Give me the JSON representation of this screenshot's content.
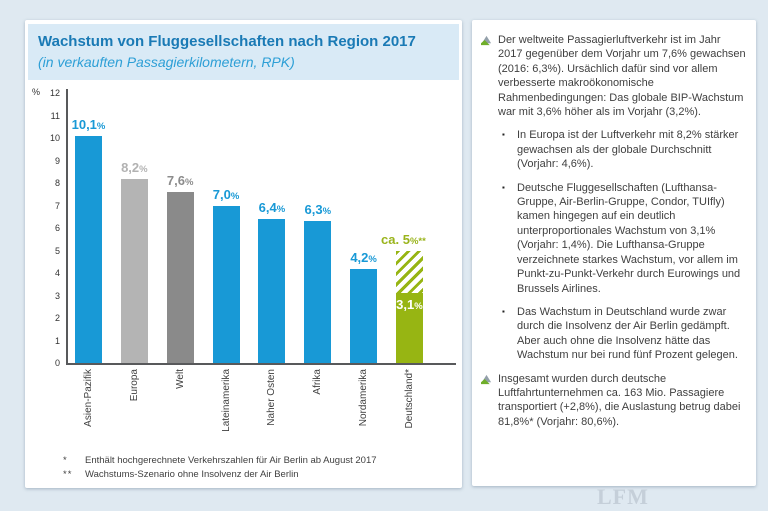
{
  "page": {
    "background": "#dfe9f1",
    "watermark": "LFM"
  },
  "chart_panel": {
    "title": "Wachstum von Fluggesellschaften nach Region 2017",
    "subtitle": "(in verkauften Passagierkilometern, RPK)",
    "footnotes": [
      {
        "marker": "*",
        "text": "Enthält hochgerechnete Verkehrszahlen für Air Berlin ab August 2017"
      },
      {
        "marker": "**",
        "text": "Wachstums-Szenario ohne Insolvenz der Air Berlin"
      }
    ]
  },
  "chart_data": {
    "type": "bar",
    "title": "Wachstum von Fluggesellschaften nach Region 2017",
    "subtitle": "(in verkauften Passagierkilometern, RPK)",
    "unit_label": "%",
    "ylim": [
      0,
      12
    ],
    "ytick_step": 1,
    "grid": false,
    "categories": [
      "Asien-Pazifik",
      "Europa",
      "Welt",
      "Lateinamerika",
      "Naher Osten",
      "Afrika",
      "Nordamerika",
      "Deutschland*"
    ],
    "values": [
      10.1,
      8.2,
      7.6,
      7.0,
      6.4,
      6.3,
      4.2,
      3.1
    ],
    "bars": [
      {
        "category": "Asien-Pazifik",
        "value": 10.1,
        "label_main": "10,1",
        "label_suffix": "%",
        "color": "#1899d6",
        "label_color": "#1899d6"
      },
      {
        "category": "Europa",
        "value": 8.2,
        "label_main": "8,2",
        "label_suffix": "%",
        "color": "#b4b4b4",
        "label_color": "#b2b2b2"
      },
      {
        "category": "Welt",
        "value": 7.6,
        "label_main": "7,6",
        "label_suffix": "%",
        "color": "#8a8a8a",
        "label_color": "#8c8c8c"
      },
      {
        "category": "Lateinamerika",
        "value": 7.0,
        "label_main": "7,0",
        "label_suffix": "%",
        "color": "#1899d6",
        "label_color": "#1899d6"
      },
      {
        "category": "Naher Osten",
        "value": 6.4,
        "label_main": "6,4",
        "label_suffix": "%",
        "color": "#1899d6",
        "label_color": "#1899d6"
      },
      {
        "category": "Afrika",
        "value": 6.3,
        "label_main": "6,3",
        "label_suffix": "%",
        "color": "#1899d6",
        "label_color": "#1899d6"
      },
      {
        "category": "Nordamerika",
        "value": 4.2,
        "label_main": "4,2",
        "label_suffix": "%",
        "color": "#1899d6",
        "label_color": "#1899d6"
      },
      {
        "category": "Deutschland*",
        "value": 3.1,
        "label_main": "3,1",
        "label_suffix": "%",
        "color": "#97b513",
        "label_color": "#ffffff",
        "label_inside": true,
        "scenario": {
          "value": 5.0,
          "label_main": "ca. 5",
          "label_suffix": "%**",
          "label_color": "#9ab41c",
          "hatched": true
        }
      }
    ]
  },
  "notes_panel": {
    "items": [
      {
        "level": 1,
        "icon": "logo-bullet-icon",
        "text": "Der weltweite Passagierluftverkehr ist im Jahr 2017 gegenüber dem Vorjahr um 7,6% gewachsen (2016: 6,3%). Ursächlich dafür sind vor allem verbesserte makroökonomische Rahmenbedingungen: Das globale BIP-Wachstum war mit 3,6% höher als im Vorjahr (3,2%)."
      },
      {
        "level": 2,
        "icon": "square-bullet-icon",
        "text": "In Europa ist der Luftverkehr mit 8,2% stärker gewachsen als der globale Durchschnitt (Vorjahr: 4,6%)."
      },
      {
        "level": 2,
        "icon": "square-bullet-icon",
        "text": "Deutsche Fluggesellschaften (Lufthansa-Gruppe, Air-Berlin-Gruppe, Condor, TUIfly) kamen hingegen auf ein deutlich unterproportionales Wachstum von 3,1% (Vorjahr: 1,4%). Die Lufthansa-Gruppe verzeichnete starkes Wachstum, vor allem im Punkt-zu-Punkt-Verkehr durch Eurowings und Brussels Airlines."
      },
      {
        "level": 2,
        "icon": "square-bullet-icon",
        "text": "Das Wachstum in Deutschland wurde zwar durch die Insolvenz der Air Berlin gedämpft. Aber auch ohne die Insolvenz hätte das Wachstum nur bei rund fünf Prozent gelegen."
      },
      {
        "level": 1,
        "icon": "logo-bullet-icon",
        "text": "Insgesamt wurden durch deutsche Luftfahrtunternehmen ca. 163 Mio. Passagiere transportiert (+2,8%), die Auslastung betrug dabei 81,8%* (Vorjahr: 80,6%)."
      }
    ]
  }
}
